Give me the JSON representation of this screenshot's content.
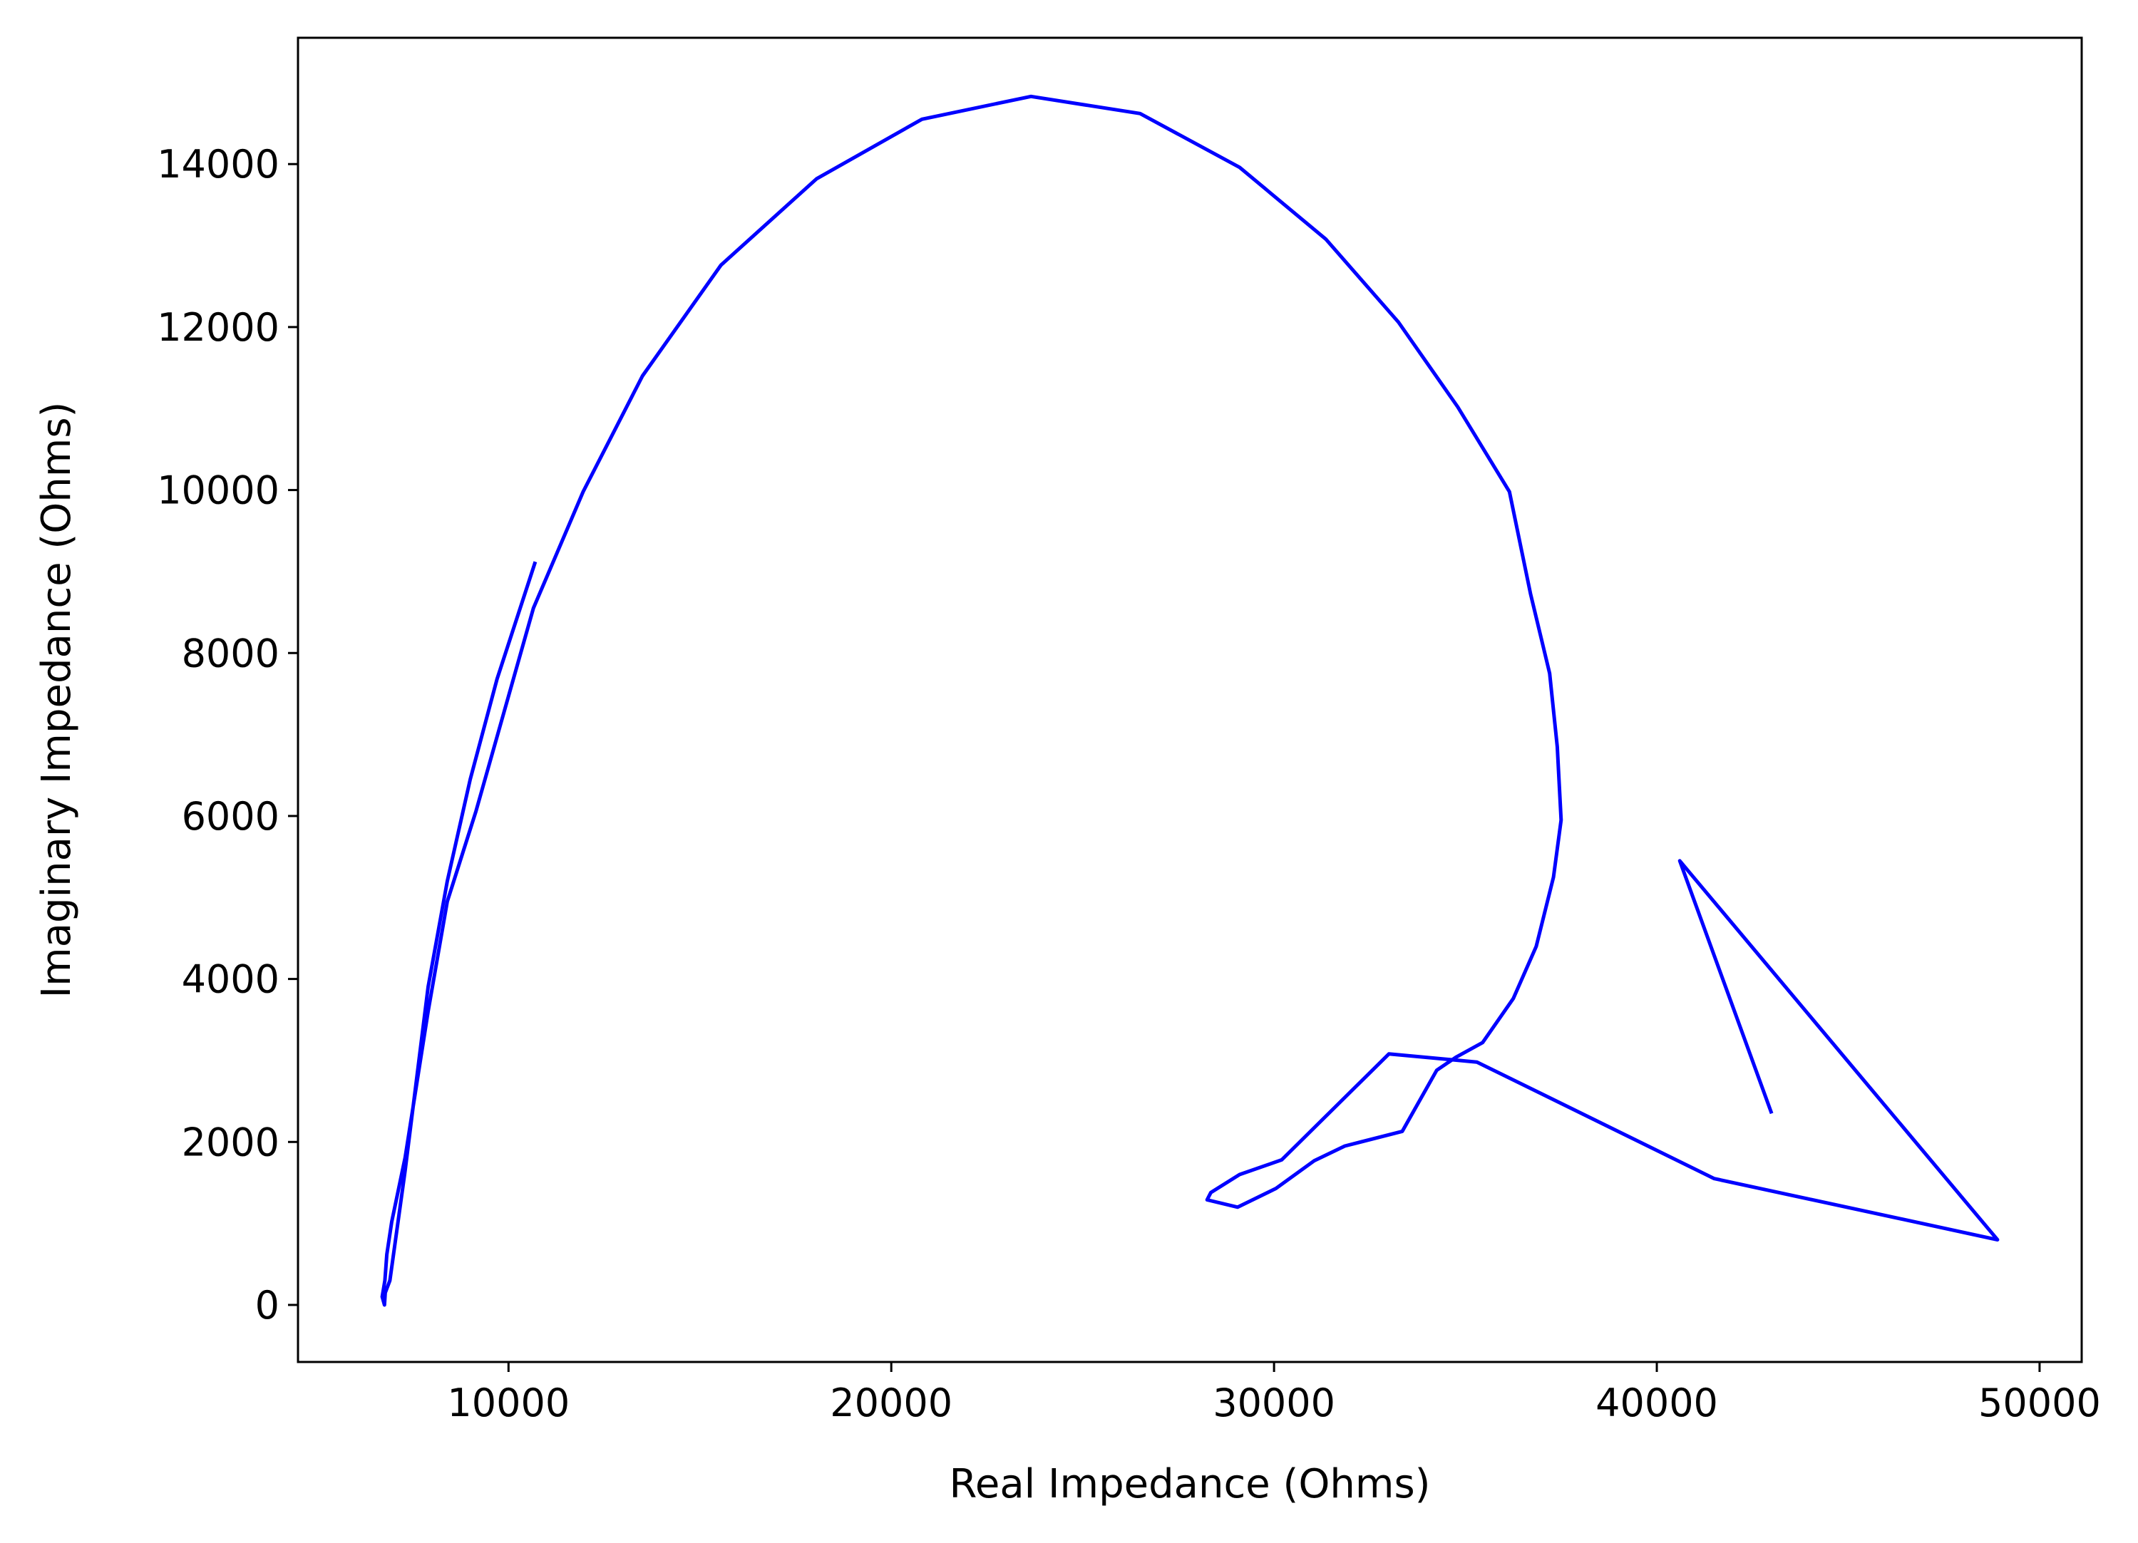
{
  "chart_data": {
    "type": "line",
    "title": "",
    "xlabel": "Real Impedance (Ohms)",
    "ylabel": "Imaginary Impedance (Ohms)",
    "xlim": [
      4500,
      51100
    ],
    "ylim": [
      -700,
      15550
    ],
    "xticks": [
      10000,
      20000,
      30000,
      40000,
      50000
    ],
    "xtick_labels": [
      "10000",
      "20000",
      "30000",
      "40000",
      "50000"
    ],
    "yticks": [
      0,
      2000,
      4000,
      6000,
      8000,
      10000,
      12000,
      14000
    ],
    "ytick_labels": [
      "0",
      "2000",
      "4000",
      "6000",
      "8000",
      "10000",
      "12000",
      "14000"
    ],
    "grid": false,
    "legend": "none",
    "series": [
      {
        "color": "#0000ff",
        "x": [
          43000,
          40600,
          48900,
          41500,
          35300,
          33000,
          30200,
          29100,
          28350,
          28250,
          29050,
          30050,
          31050,
          31850,
          33350,
          34250,
          34750,
          35450,
          36250,
          36850,
          37300,
          37500,
          37400,
          37200,
          36700,
          36150,
          34800,
          33250,
          31350,
          29100,
          26500,
          23650,
          20800,
          18050,
          15550,
          13500,
          11950,
          10650,
          9150,
          8400,
          7900,
          7300,
          6950,
          6820,
          6770,
          6700,
          6760,
          6780,
          6900,
          7300,
          7900,
          8400,
          9000,
          9700,
          10700
        ],
        "y": [
          2350,
          5450,
          800,
          1550,
          2980,
          3080,
          1780,
          1600,
          1380,
          1290,
          1200,
          1430,
          1770,
          1950,
          2130,
          2880,
          3040,
          3220,
          3760,
          4400,
          5250,
          5950,
          6850,
          7750,
          8730,
          9980,
          11020,
          12060,
          13080,
          13960,
          14620,
          14830,
          14550,
          13820,
          12760,
          11400,
          9980,
          8550,
          6060,
          4950,
          3600,
          1810,
          1020,
          620,
          300,
          100,
          0,
          150,
          300,
          1650,
          3900,
          5200,
          6450,
          7680,
          9120
        ]
      }
    ]
  }
}
